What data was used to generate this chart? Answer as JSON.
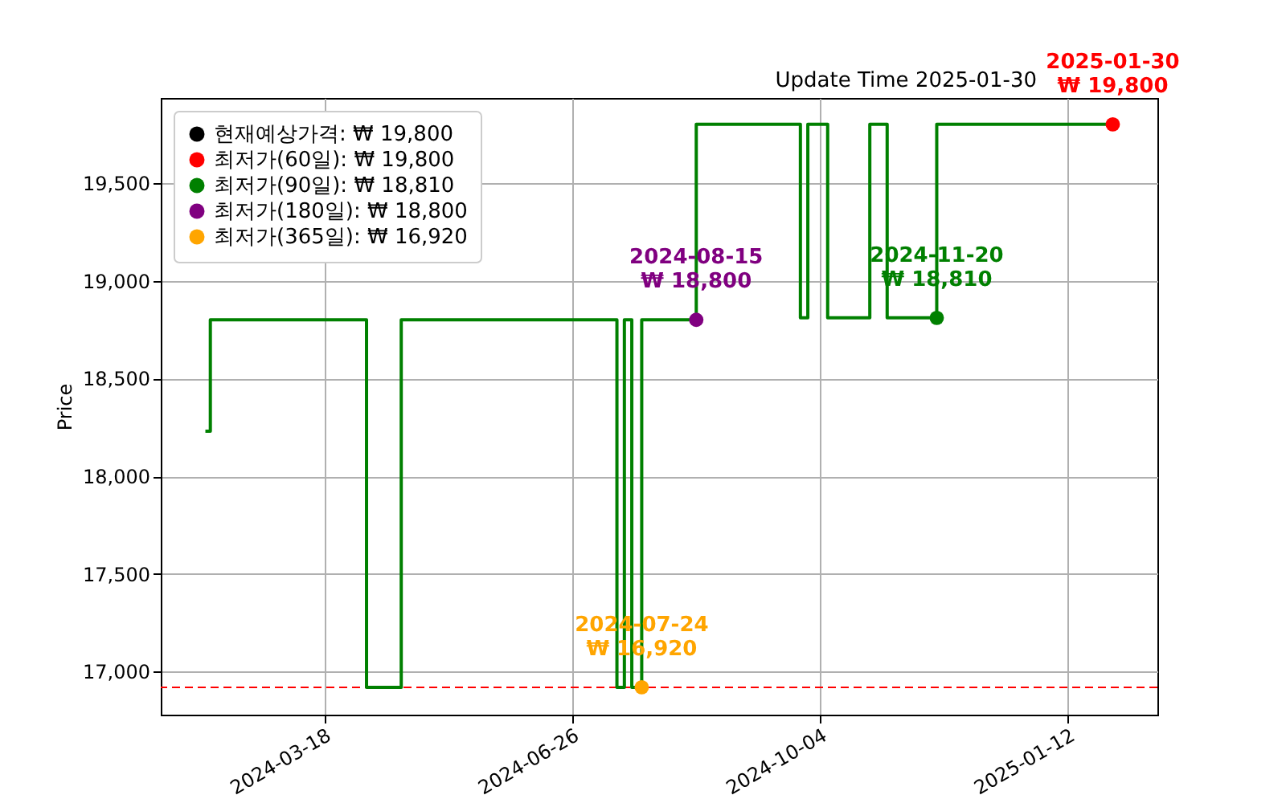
{
  "chart_data": {
    "type": "step",
    "ylabel": "Price",
    "xlim": [
      "2024-01-12",
      "2025-02-17"
    ],
    "ylim": [
      16780,
      19935
    ],
    "xticks": [
      "2024-03-18",
      "2024-06-26",
      "2024-10-04",
      "2025-01-12"
    ],
    "yticks": [
      {
        "value": 17000,
        "label": "17,000"
      },
      {
        "value": 17500,
        "label": "17,500"
      },
      {
        "value": 18000,
        "label": "18,000"
      },
      {
        "value": 18500,
        "label": "18,500"
      },
      {
        "value": 19000,
        "label": "19,000"
      },
      {
        "value": 19500,
        "label": "19,500"
      }
    ],
    "grid": true,
    "legend": "top left",
    "series": [
      {
        "color": "#008000",
        "x": [
          "2024-01-30",
          "2024-02-01",
          "2024-04-04",
          "2024-04-18",
          "2024-07-14",
          "2024-07-17",
          "2024-07-20",
          "2024-07-24",
          "2024-08-15",
          "2024-09-26",
          "2024-09-29",
          "2024-10-07",
          "2024-10-24",
          "2024-10-31",
          "2024-11-20",
          "2025-01-30"
        ],
        "values": [
          18230,
          18800,
          16920,
          18800,
          16920,
          18800,
          16920,
          18800,
          19800,
          18810,
          19800,
          18810,
          19800,
          18810,
          19800,
          19800
        ]
      },
      {
        "type": "scatter",
        "name": "현재예상가격: ₩ 19,800",
        "color": "#000000"
      },
      {
        "type": "scatter",
        "name": "최저가(60일): ₩ 19,800",
        "color": "#ff0000",
        "x": [
          "2025-01-30"
        ],
        "values": [
          19800
        ]
      },
      {
        "type": "scatter",
        "name": "최저가(90일): ₩ 18,810",
        "color": "#008000",
        "x": [
          "2024-11-20"
        ],
        "values": [
          18810
        ]
      },
      {
        "type": "scatter",
        "name": "최저가(180일): ₩ 18,800",
        "color": "#800080",
        "x": [
          "2024-08-15"
        ],
        "values": [
          18800
        ]
      },
      {
        "type": "scatter",
        "name": "최저가(365일): ₩ 16,920",
        "color": "#ffa500",
        "x": [
          "2024-07-24"
        ],
        "values": [
          16920
        ]
      }
    ],
    "ref_lines": [
      {
        "axis": "y",
        "value": 16920,
        "color": "#ff0000",
        "line_style": "dashed"
      }
    ],
    "annotations": [
      {
        "text": "2025-01-30\n₩ 19,800",
        "x": "2025-01-30",
        "y": 19800
      },
      {
        "text": "2024-11-20\n₩ 18,810",
        "x": "2024-11-20",
        "y": 18810
      },
      {
        "text": "2024-08-15\n₩ 18,800",
        "x": "2024-08-15",
        "y": 18800
      },
      {
        "text": "2024-07-24\n₩ 16,920",
        "x": "2024-07-24",
        "y": 16920
      },
      "Update Time  2025-01-30"
    ]
  }
}
